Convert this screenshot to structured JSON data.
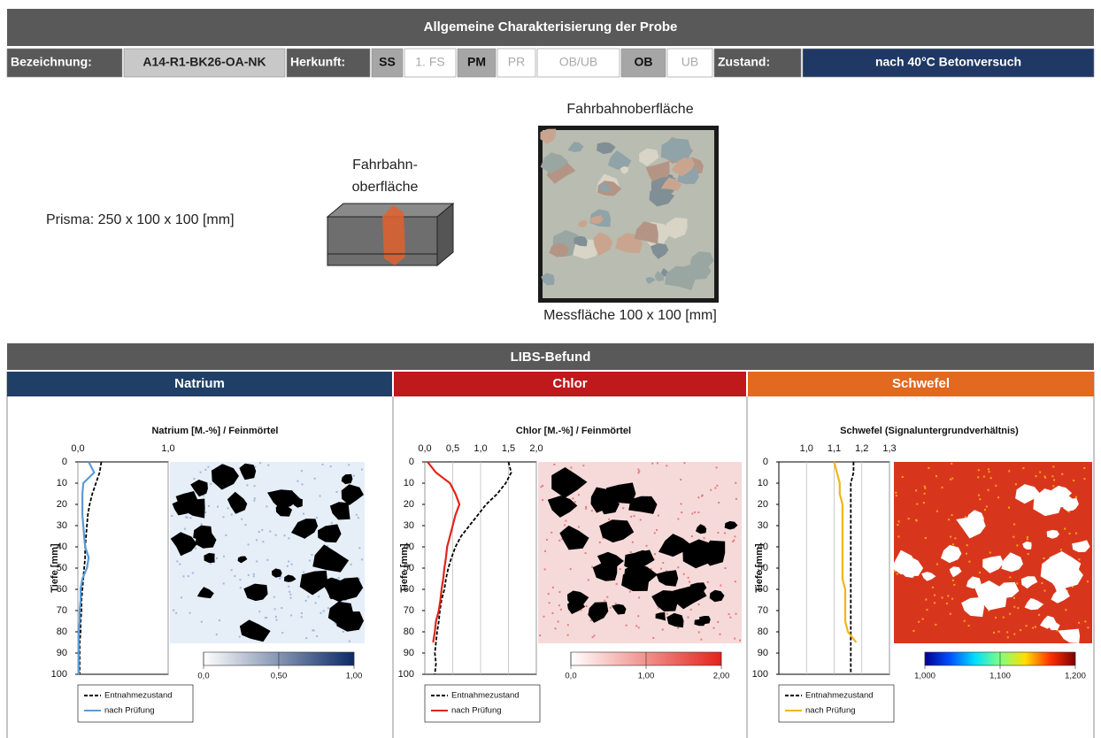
{
  "header": {
    "title": "Allgemeine Charakterisierung der Probe"
  },
  "info_bar": {
    "designation_label": "Bezeichnung:",
    "designation": "A14-R1-BK26-OA-NK",
    "origin_label": "Herkunft:",
    "origin_options": [
      {
        "label": "SS",
        "selected": true
      },
      {
        "label": "1. FS",
        "selected": false
      },
      {
        "label": "PM",
        "selected": true
      },
      {
        "label": "PR",
        "selected": false
      },
      {
        "label": "OB/UB",
        "selected": false
      },
      {
        "label": "OB",
        "selected": true
      },
      {
        "label": "UB",
        "selected": false
      }
    ],
    "state_label": "Zustand:",
    "state": "nach 40°C Betonversuch"
  },
  "sample": {
    "prism": "Prisma: 250 x 100 x 100 [mm]",
    "prism_surface_label": [
      "Fahrbahn-",
      "oberfläche"
    ],
    "photo_title": "Fahrbahnoberfläche",
    "photo_caption": "Messfläche 100 x 100 [mm]"
  },
  "libs": {
    "title": "LIBS-Befund",
    "panels": [
      {
        "title": "Natrium",
        "color": "#1f3f66"
      },
      {
        "title": "Chlor",
        "color": "#c0191c"
      },
      {
        "title": "Schwefel",
        "color": "#e2691f"
      }
    ]
  },
  "chart_data": [
    {
      "type": "line",
      "title": "Natrium [M.-%] / Feinmörtel",
      "y_label": "Tiefe [mm]",
      "y": [
        0,
        5,
        10,
        15,
        20,
        25,
        30,
        35,
        40,
        45,
        50,
        55,
        60,
        65,
        70,
        75,
        80,
        85,
        90,
        95,
        100
      ],
      "ylim": [
        0,
        100
      ],
      "y_inverted": true,
      "yticks": [
        0,
        10,
        20,
        30,
        40,
        50,
        60,
        70,
        80,
        90,
        100
      ],
      "xlim": [
        0,
        1
      ],
      "xticks": [
        {
          "value": 0,
          "label": "0,0"
        },
        {
          "value": 1,
          "label": "1,0"
        }
      ],
      "grid": true,
      "series": [
        {
          "name": "Entnahmezustand",
          "color": "#000000",
          "dash": true,
          "values": [
            0.26,
            0.24,
            0.2,
            0.16,
            0.13,
            0.11,
            0.1,
            0.09,
            0.08,
            0.08,
            0.07,
            0.06,
            0.05,
            0.04,
            0.04,
            0.03,
            0.03,
            0.02,
            0.02,
            0.02,
            0.02
          ]
        },
        {
          "name": "nach Prüfung",
          "color": "#5b9bd5",
          "values": [
            0.12,
            0.18,
            0.06,
            0.05,
            0.05,
            0.05,
            0.06,
            0.07,
            0.08,
            0.12,
            0.1,
            0.05,
            0.03,
            0.03,
            0.02,
            0.02,
            0.01,
            0.01,
            0.01,
            0.01,
            0.01
          ]
        }
      ],
      "colorbar": {
        "lim": [
          0,
          1
        ],
        "colors": [
          "#ffffff",
          "#0b2a66"
        ],
        "ticks": [
          {
            "value": 0,
            "label": "0,0"
          },
          {
            "value": 0.5,
            "label": "0,50"
          },
          {
            "value": 1,
            "label": "1,00"
          }
        ]
      }
    },
    {
      "type": "line",
      "title": "Chlor [M.-%] / Feinmörtel",
      "y_label": "Tiefe [mm]",
      "y": [
        0,
        5,
        10,
        15,
        20,
        25,
        30,
        35,
        40,
        45,
        50,
        55,
        60,
        65,
        70,
        75,
        80,
        85,
        90,
        95,
        100
      ],
      "ylim": [
        0,
        100
      ],
      "y_inverted": true,
      "yticks": [
        0,
        10,
        20,
        30,
        40,
        50,
        60,
        70,
        80,
        90,
        100
      ],
      "xlim": [
        0,
        2
      ],
      "xticks": [
        {
          "value": 0,
          "label": "0,0"
        },
        {
          "value": 0.5,
          "label": "0,5"
        },
        {
          "value": 1,
          "label": "1,0"
        },
        {
          "value": 1.5,
          "label": "1,5"
        },
        {
          "value": 2,
          "label": "2,0"
        }
      ],
      "grid": true,
      "series": [
        {
          "name": "Entnahmezustand",
          "color": "#000000",
          "dash": true,
          "values": [
            1.5,
            1.55,
            1.45,
            1.3,
            1.1,
            0.95,
            0.8,
            0.65,
            0.55,
            0.48,
            0.42,
            0.38,
            0.35,
            0.3,
            0.27,
            0.25,
            0.22,
            0.2,
            0.18,
            0.2,
            0.18
          ]
        },
        {
          "name": "nach Prüfung",
          "color": "#e2231a",
          "values": [
            0.05,
            0.2,
            0.45,
            0.55,
            0.62,
            0.55,
            0.5,
            0.45,
            0.4,
            0.38,
            0.35,
            0.33,
            0.3,
            0.28,
            0.25,
            0.2,
            0.18,
            0.15,
            null,
            null,
            null
          ]
        }
      ],
      "colorbar": {
        "lim": [
          0,
          2
        ],
        "colors": [
          "#ffffff",
          "#e2231a"
        ],
        "ticks": [
          {
            "value": 0,
            "label": "0,0"
          },
          {
            "value": 1,
            "label": "1,00"
          },
          {
            "value": 2,
            "label": "2,00"
          }
        ]
      }
    },
    {
      "type": "line",
      "title": "Schwefel (Signaluntergrundverhältnis)",
      "y_label": "Tiefe [mm]",
      "y": [
        0,
        5,
        10,
        15,
        20,
        25,
        30,
        35,
        40,
        45,
        50,
        55,
        60,
        65,
        70,
        75,
        80,
        85,
        90,
        95,
        100
      ],
      "ylim": [
        0,
        100
      ],
      "y_inverted": true,
      "yticks": [
        0,
        10,
        20,
        30,
        40,
        50,
        60,
        70,
        80,
        90,
        100
      ],
      "xlim": [
        0.9,
        1.3
      ],
      "xticks": [
        {
          "value": 1,
          "label": "1,0"
        },
        {
          "value": 1.1,
          "label": "1,1"
        },
        {
          "value": 1.2,
          "label": "1,2"
        },
        {
          "value": 1.3,
          "label": "1,3"
        }
      ],
      "grid": true,
      "series": [
        {
          "name": "Entnahmezustand",
          "color": "#000000",
          "dash": true,
          "values": [
            1.17,
            1.17,
            1.16,
            1.16,
            1.16,
            1.16,
            1.16,
            1.16,
            1.16,
            1.16,
            1.16,
            1.16,
            1.16,
            1.16,
            1.16,
            1.16,
            1.16,
            1.16,
            1.16,
            1.16,
            1.16
          ]
        },
        {
          "name": "nach Prüfung",
          "color": "#f2b41b",
          "values": [
            1.1,
            1.11,
            1.12,
            1.12,
            1.13,
            1.13,
            1.13,
            1.13,
            1.13,
            1.13,
            1.13,
            1.13,
            1.14,
            1.14,
            1.14,
            1.14,
            1.15,
            1.18,
            null,
            null,
            null
          ]
        }
      ],
      "colorbar": {
        "lim": [
          1,
          1.2
        ],
        "colors": [
          "#00008f",
          "#0050ff",
          "#00dfff",
          "#7fff7f",
          "#ffdf00",
          "#ff3000",
          "#7f0000"
        ],
        "ticks": [
          {
            "value": 1,
            "label": "1,000"
          },
          {
            "value": 1.1,
            "label": "1,100"
          },
          {
            "value": 1.2,
            "label": "1,200"
          }
        ]
      }
    }
  ]
}
